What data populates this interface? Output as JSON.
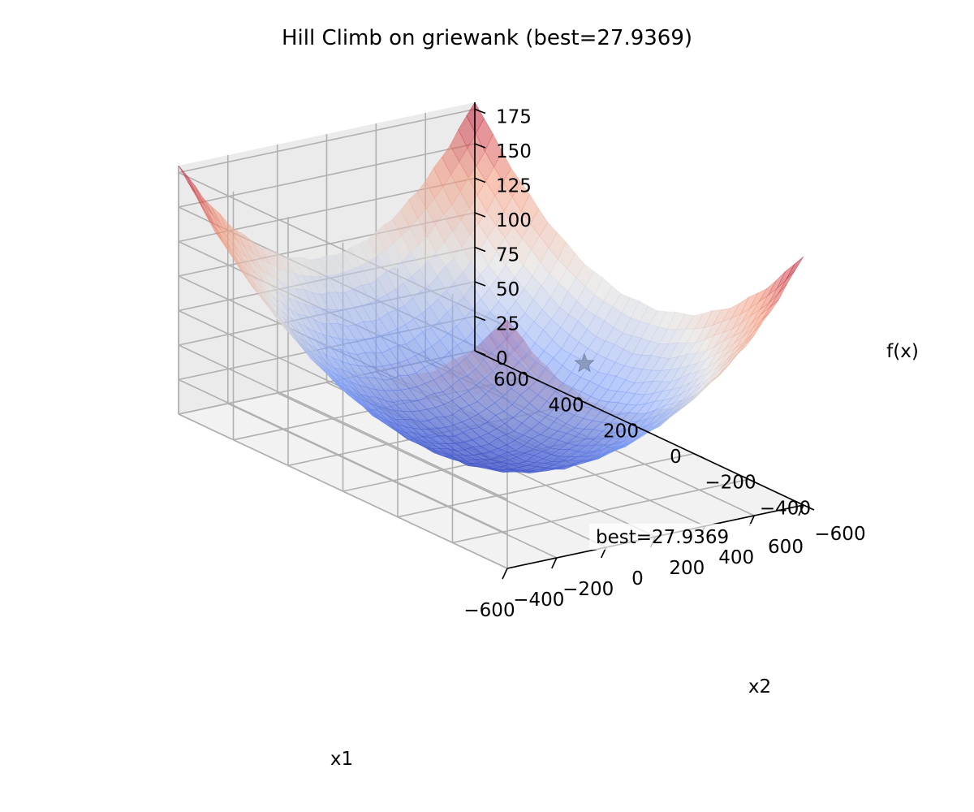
{
  "chart_data": {
    "type": "surface",
    "title": "Hill Climb on griewank (best=27.9369)",
    "function": "griewank",
    "xlabel": "x1",
    "ylabel": "x2",
    "zlabel": "f(x)",
    "xlim": [
      -600,
      600
    ],
    "ylim": [
      -600,
      600
    ],
    "zlim": [
      0,
      180
    ],
    "x_ticks": [
      -600,
      -400,
      -200,
      0,
      200,
      400,
      600
    ],
    "y_ticks": [
      -600,
      -400,
      -200,
      0,
      200,
      400,
      600
    ],
    "z_ticks": [
      0,
      25,
      50,
      75,
      100,
      125,
      150,
      175
    ],
    "x_tick_labels": [
      "−600",
      "−400",
      "−200",
      "0",
      "200",
      "400",
      "600"
    ],
    "y_tick_labels": [
      "−600",
      "−400",
      "−200",
      "0",
      "200",
      "400",
      "600"
    ],
    "z_tick_labels": [
      "0",
      "25",
      "50",
      "75",
      "100",
      "125",
      "150",
      "175"
    ],
    "colormap": "coolwarm",
    "grid": true,
    "best_point": {
      "x1": 600,
      "x2": 200,
      "value": 27.9369,
      "marker": "star",
      "color": "#8a9bbf"
    },
    "annotation": "best=27.9369"
  }
}
